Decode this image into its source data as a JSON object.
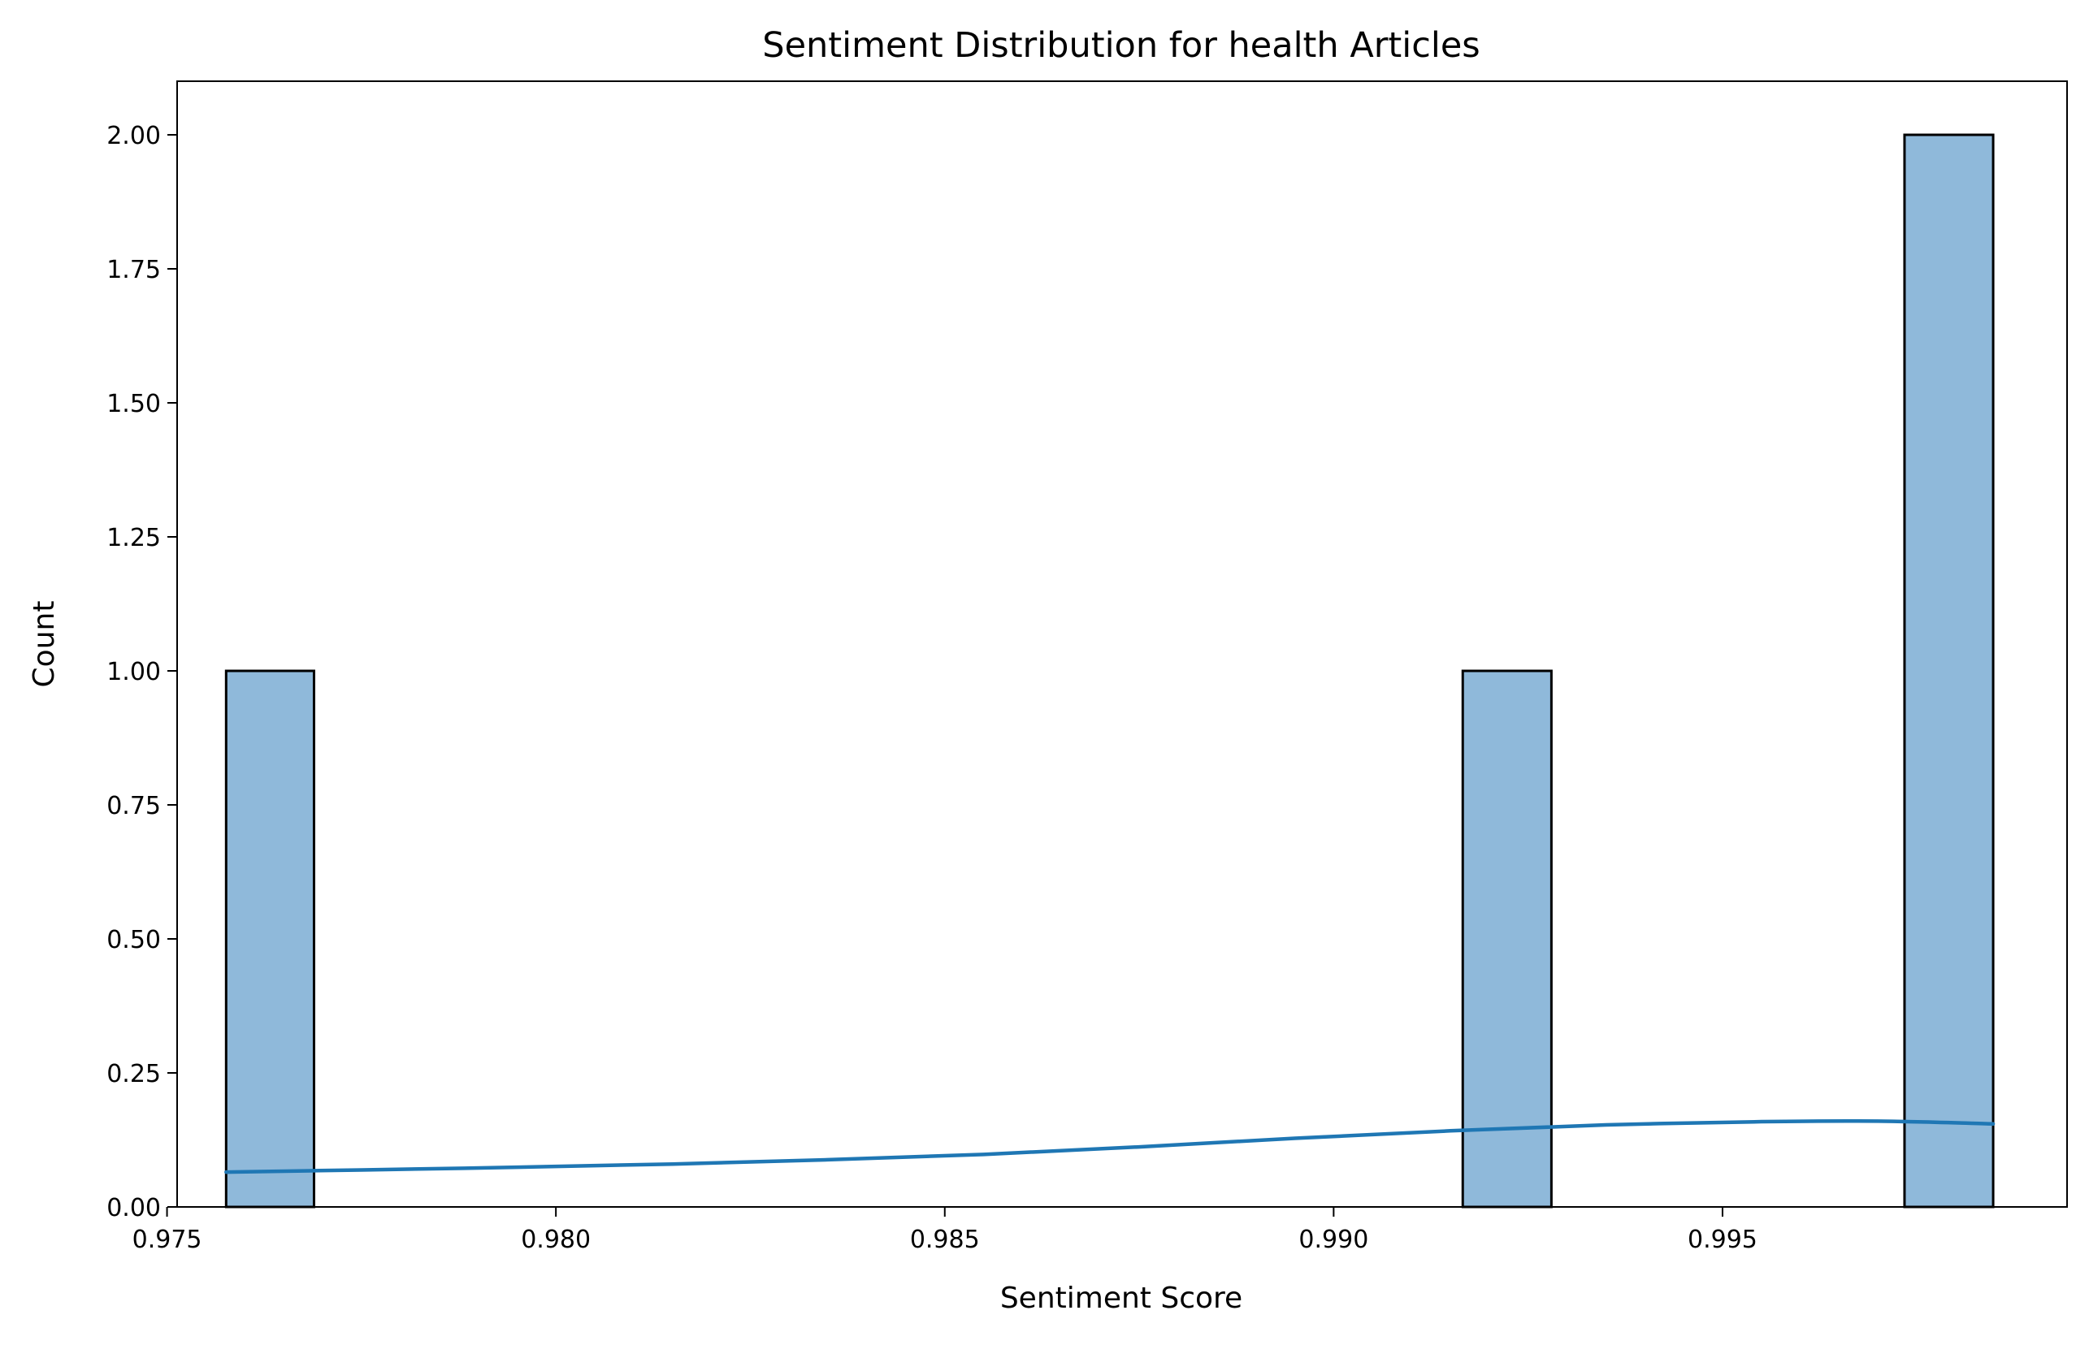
{
  "chart_data": {
    "type": "bar",
    "title": "Sentiment Distribution for health Articles",
    "xlabel": "Sentiment Score",
    "ylabel": "Count",
    "xlim": [
      0.97513,
      0.99943
    ],
    "ylim": [
      0,
      2.1
    ],
    "x_ticks": [
      0.975,
      0.98,
      0.985,
      0.99,
      0.995
    ],
    "x_tick_labels": [
      "0.975",
      "0.980",
      "0.985",
      "0.990",
      "0.995"
    ],
    "y_ticks": [
      0,
      0.25,
      0.5,
      0.75,
      1.0,
      1.25,
      1.5,
      1.75,
      2.0
    ],
    "y_tick_labels": [
      "0.00",
      "0.25",
      "0.50",
      "0.75",
      "1.00",
      "1.25",
      "1.50",
      "1.75",
      "2.00"
    ],
    "bins": [
      {
        "x_start": 0.97576,
        "x_end": 0.97689,
        "count": 1
      },
      {
        "x_start": 0.99166,
        "x_end": 0.9928,
        "count": 1
      },
      {
        "x_start": 0.99734,
        "x_end": 0.99848,
        "count": 2
      }
    ],
    "kde": {
      "x": [
        0.97576,
        0.9775,
        0.9795,
        0.9815,
        0.9835,
        0.9855,
        0.9875,
        0.9895,
        0.9915,
        0.9935,
        0.9955,
        0.997,
        0.99848
      ],
      "y": [
        0.065,
        0.069,
        0.074,
        0.08,
        0.088,
        0.098,
        0.112,
        0.128,
        0.142,
        0.153,
        0.159,
        0.16,
        0.155
      ]
    },
    "grid": false,
    "legend": "none",
    "colors": {
      "bar_fill": "#8fb9da",
      "bar_edge": "#000000",
      "kde_line": "#1f77b4"
    }
  }
}
